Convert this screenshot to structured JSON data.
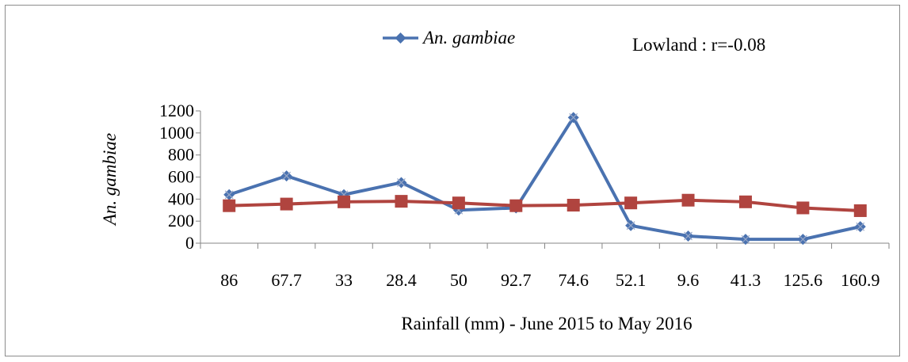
{
  "chart_data": {
    "type": "line",
    "title": "",
    "annotation": "Lowland : r=-0.08",
    "xlabel": "Rainfall (mm) - June 2015 to May 2016",
    "ylabel": "An. gambiae",
    "categories": [
      "86",
      "67.7",
      "33",
      "28.4",
      "50",
      "92.7",
      "74.6",
      "52.1",
      "9.6",
      "41.3",
      "125.6",
      "160.9"
    ],
    "ylim": [
      0,
      1200
    ],
    "yticks": [
      0,
      200,
      400,
      600,
      800,
      1000,
      1200
    ],
    "legend_position": "top",
    "grid": false,
    "series": [
      {
        "name": "An. gambiae",
        "color": "#4a72b0",
        "marker": "diamond",
        "values": [
          440,
          610,
          440,
          550,
          300,
          320,
          1140,
          160,
          65,
          35,
          35,
          150
        ]
      },
      {
        "color": "#b0443f",
        "marker": "square",
        "values": [
          340,
          355,
          375,
          380,
          365,
          340,
          345,
          365,
          390,
          375,
          320,
          295
        ]
      }
    ]
  }
}
